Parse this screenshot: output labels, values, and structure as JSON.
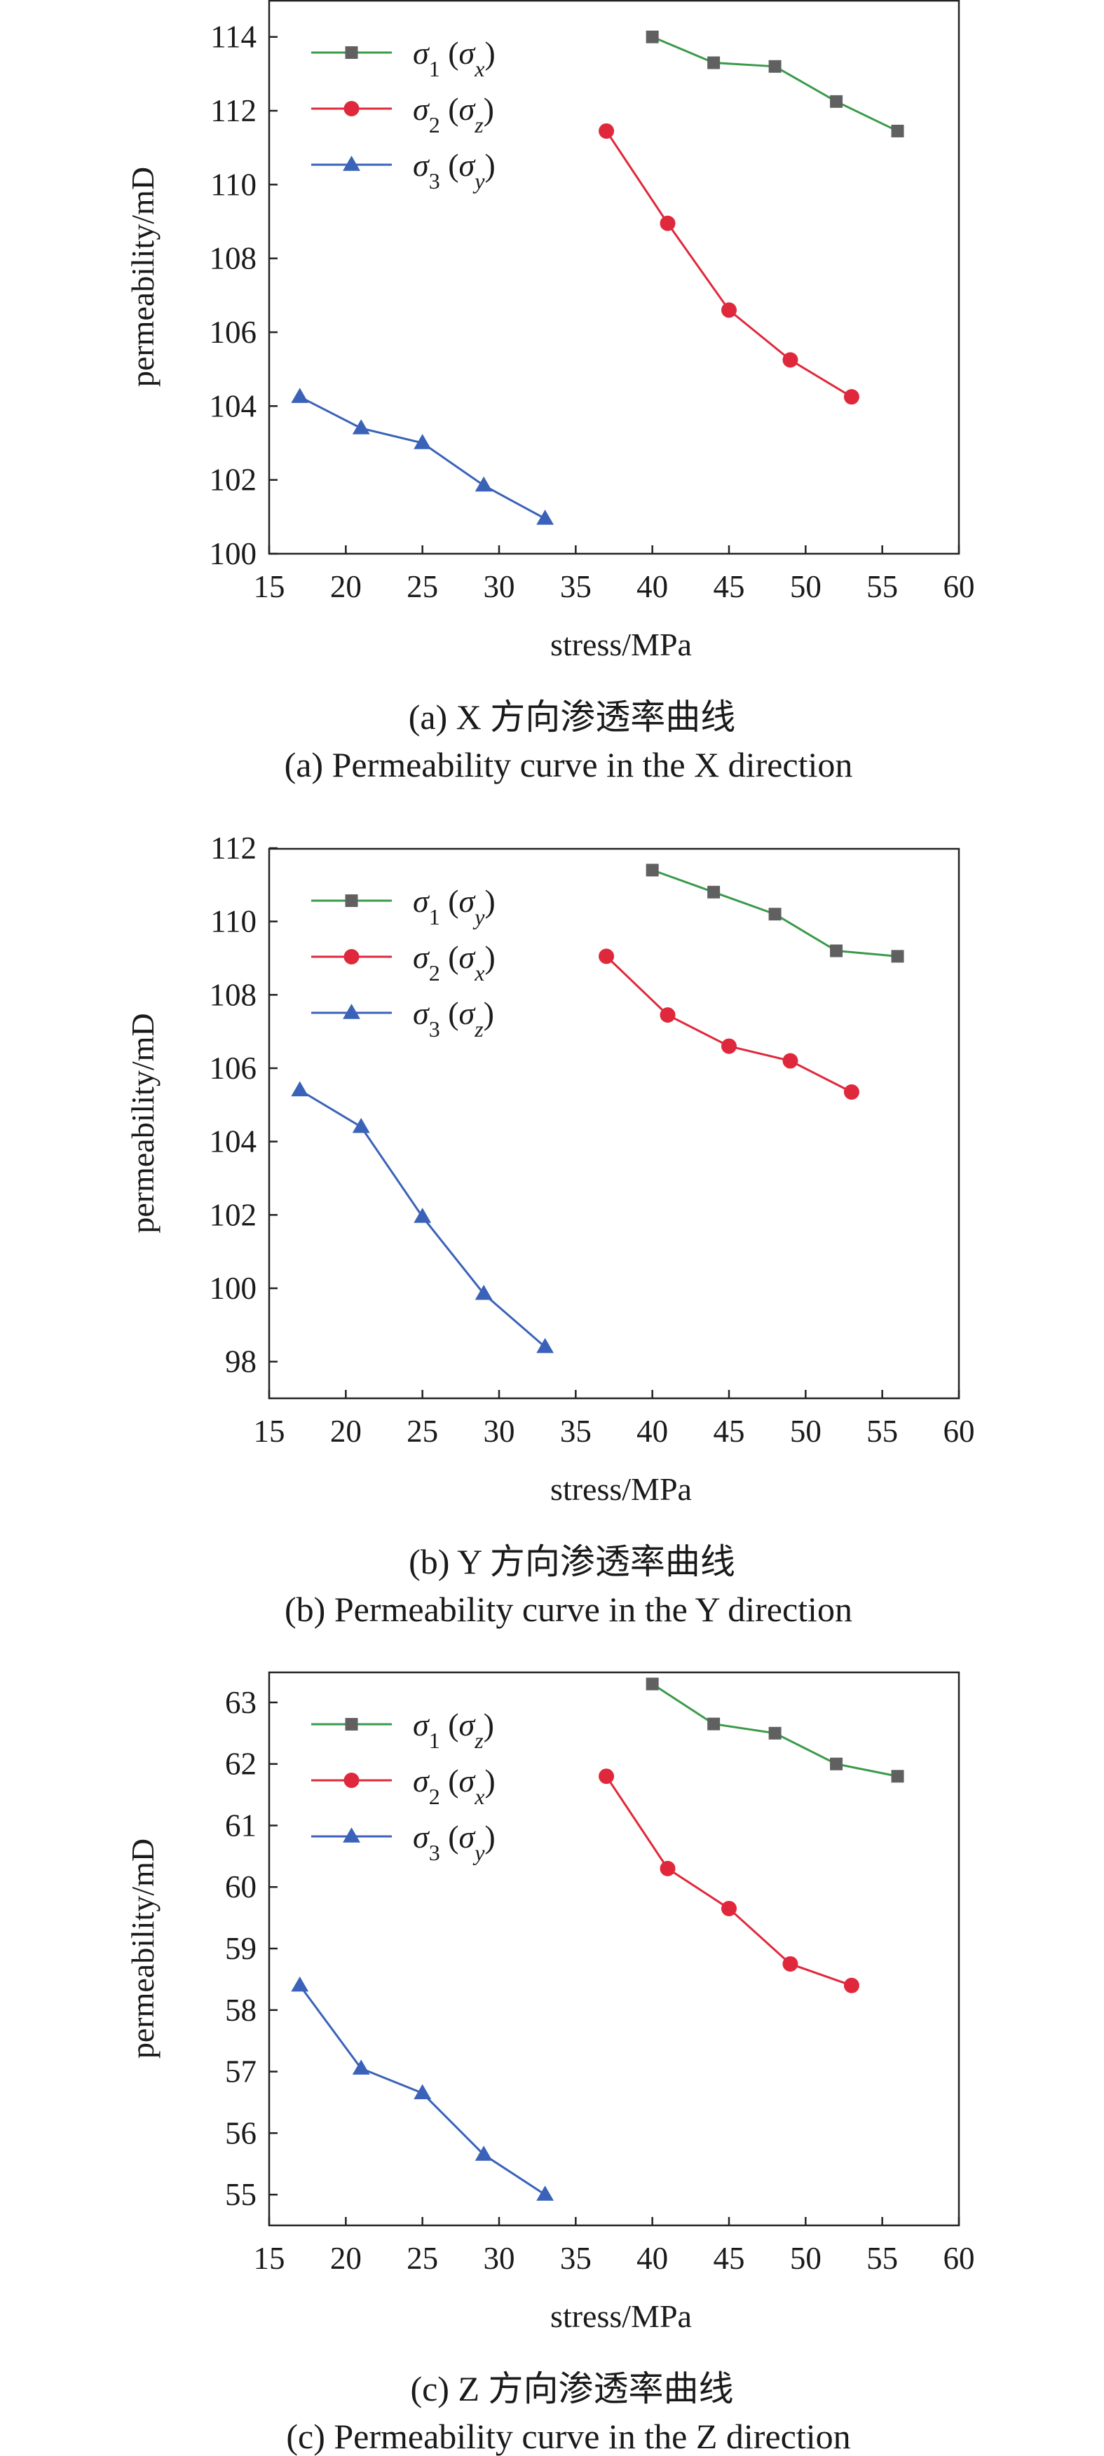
{
  "chart_data": [
    {
      "type": "line",
      "xlabel": "stress/MPa",
      "ylabel": "permeability/mD",
      "xlim": [
        15,
        60
      ],
      "ylim": [
        100,
        115
      ],
      "xticks": [
        "15",
        "20",
        "25",
        "30",
        "35",
        "40",
        "45",
        "50",
        "55",
        "60"
      ],
      "yticks": [
        "100",
        "102",
        "104",
        "106",
        "108",
        "110",
        "112",
        "114"
      ],
      "caption_cn": "(a) X 方向渗透率曲线",
      "caption_en": "(a) Permeability curve in the X direction",
      "legend_position": "top-left",
      "grid": false,
      "series": [
        {
          "name_main": "σ",
          "name_sub": "1",
          "name_paren": "σ",
          "name_paren_sub": "x",
          "color": "#3a9a4a",
          "marker": "square",
          "marker_color": "#606060",
          "x": [
            40,
            44,
            48,
            52,
            56
          ],
          "y": [
            114.0,
            113.3,
            113.2,
            112.25,
            111.45
          ]
        },
        {
          "name_main": "σ",
          "name_sub": "2",
          "name_paren": "σ",
          "name_paren_sub": "z",
          "color": "#e0283c",
          "marker": "circle",
          "marker_color": "#e0283c",
          "x": [
            37,
            41,
            45,
            49,
            53
          ],
          "y": [
            111.45,
            108.95,
            106.6,
            105.25,
            104.25
          ]
        },
        {
          "name_main": "σ",
          "name_sub": "3",
          "name_paren": "σ",
          "name_paren_sub": "y",
          "color": "#3a62b8",
          "marker": "triangle",
          "marker_color": "#3a62b8",
          "x": [
            17,
            21,
            25,
            29,
            33
          ],
          "y": [
            104.25,
            103.4,
            103.0,
            101.85,
            100.95
          ]
        }
      ]
    },
    {
      "type": "line",
      "xlabel": "stress/MPa",
      "ylabel": "permeability/mD",
      "xlim": [
        15,
        60
      ],
      "ylim": [
        97,
        112
      ],
      "xticks": [
        "15",
        "20",
        "25",
        "30",
        "35",
        "40",
        "45",
        "50",
        "55",
        "60"
      ],
      "yticks": [
        "98",
        "100",
        "102",
        "104",
        "106",
        "108",
        "110",
        "112"
      ],
      "caption_cn": "(b) Y 方向渗透率曲线",
      "caption_en": "(b) Permeability curve in the Y direction",
      "legend_position": "top-left",
      "grid": false,
      "series": [
        {
          "name_main": "σ",
          "name_sub": "1",
          "name_paren": "σ",
          "name_paren_sub": "y",
          "color": "#3a9a4a",
          "marker": "square",
          "marker_color": "#606060",
          "x": [
            40,
            44,
            48,
            52,
            56
          ],
          "y": [
            111.4,
            110.8,
            110.2,
            109.2,
            109.05
          ]
        },
        {
          "name_main": "σ",
          "name_sub": "2",
          "name_paren": "σ",
          "name_paren_sub": "x",
          "color": "#e0283c",
          "marker": "circle",
          "marker_color": "#e0283c",
          "x": [
            37,
            41,
            45,
            49,
            53
          ],
          "y": [
            109.05,
            107.45,
            106.6,
            106.2,
            105.35
          ]
        },
        {
          "name_main": "σ",
          "name_sub": "3",
          "name_paren": "σ",
          "name_paren_sub": "z",
          "color": "#3a62b8",
          "marker": "triangle",
          "marker_color": "#3a62b8",
          "x": [
            17,
            21,
            25,
            29,
            33
          ],
          "y": [
            105.4,
            104.4,
            101.95,
            99.85,
            98.4
          ]
        }
      ]
    },
    {
      "type": "line",
      "xlabel": "stress/MPa",
      "ylabel": "permeability/mD",
      "xlim": [
        15,
        60
      ],
      "ylim": [
        54.5,
        63.5
      ],
      "xticks": [
        "15",
        "20",
        "25",
        "30",
        "35",
        "40",
        "45",
        "50",
        "55",
        "60"
      ],
      "yticks": [
        "55",
        "56",
        "57",
        "58",
        "59",
        "60",
        "61",
        "62",
        "63"
      ],
      "caption_cn": "(c) Z 方向渗透率曲线",
      "caption_en": "(c) Permeability curve in the Z direction",
      "legend_position": "top-left",
      "grid": false,
      "series": [
        {
          "name_main": "σ",
          "name_sub": "1",
          "name_paren": "σ",
          "name_paren_sub": "z",
          "color": "#3a9a4a",
          "marker": "square",
          "marker_color": "#606060",
          "x": [
            40,
            44,
            48,
            52,
            56
          ],
          "y": [
            63.3,
            62.65,
            62.5,
            62.0,
            61.8
          ]
        },
        {
          "name_main": "σ",
          "name_sub": "2",
          "name_paren": "σ",
          "name_paren_sub": "x",
          "color": "#e0283c",
          "marker": "circle",
          "marker_color": "#e0283c",
          "x": [
            37,
            41,
            45,
            49,
            53
          ],
          "y": [
            61.8,
            60.3,
            59.65,
            58.75,
            58.4
          ]
        },
        {
          "name_main": "σ",
          "name_sub": "3",
          "name_paren": "σ",
          "name_paren_sub": "y",
          "color": "#3a62b8",
          "marker": "triangle",
          "marker_color": "#3a62b8",
          "x": [
            17,
            21,
            25,
            29,
            33
          ],
          "y": [
            58.4,
            57.05,
            56.65,
            55.65,
            55.0
          ]
        }
      ]
    }
  ]
}
